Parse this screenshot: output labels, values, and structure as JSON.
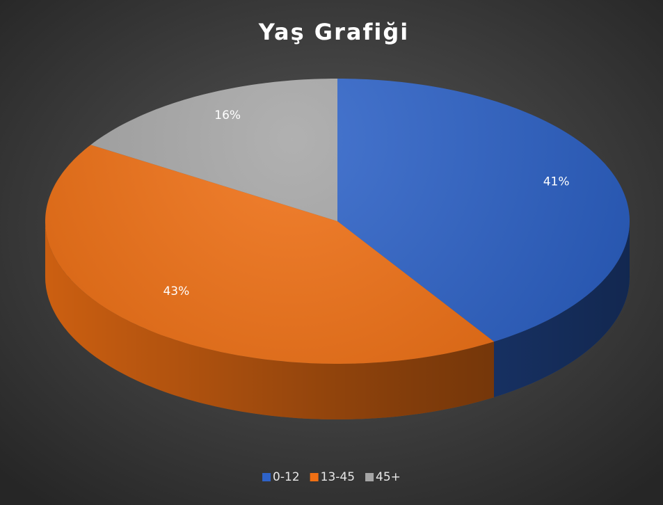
{
  "chart_data": {
    "type": "pie",
    "title": "Yaş Grafiği",
    "categories": [
      "0-12",
      "13-45",
      "45+"
    ],
    "values": [
      41,
      43,
      16
    ],
    "value_labels": [
      "41%",
      "43%",
      "16%"
    ],
    "colors": [
      "#2e63c8",
      "#f07014",
      "#a6a6a6"
    ],
    "legend": "bottom"
  }
}
